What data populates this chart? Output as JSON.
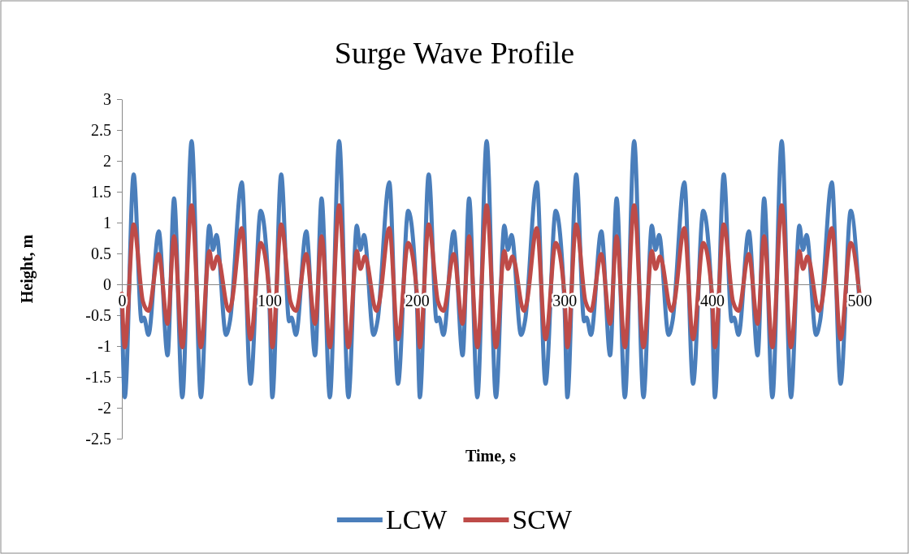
{
  "chart_data": {
    "type": "line",
    "title": "Surge Wave Profile",
    "xlabel": "Time, s",
    "ylabel": "Height, m",
    "xlim": [
      0,
      500
    ],
    "xticks": [
      0,
      100,
      200,
      300,
      400,
      500
    ],
    "ylim": [
      -2.5,
      3
    ],
    "yticks": [
      -2.5,
      -2,
      -1.5,
      -1,
      -0.5,
      0,
      0.5,
      1,
      1.5,
      2,
      2.5,
      3
    ],
    "grid": false,
    "legend": "bottom",
    "marker": "none",
    "line_style": "solid",
    "series": [
      {
        "name": "LCW",
        "color": "#4a7ebb",
        "x": [
          0,
          2,
          8,
          13.4,
          15,
          18,
          25,
          31,
          35.4,
          41,
          47.3,
          53.6,
          59.3,
          61.7,
          64.2,
          70.6,
          73.4,
          81.3,
          87.2,
          94.1,
          100,
          102,
          108,
          113.4,
          115,
          118,
          125,
          131,
          135.4,
          141,
          147.3,
          153.6,
          159.3,
          161.7,
          164.2,
          170.6,
          173.4,
          181.3,
          187.2,
          194.1,
          200,
          202,
          208,
          213.4,
          215,
          218,
          225,
          231,
          235.4,
          241,
          247.3,
          253.6,
          259.3,
          261.7,
          264.2,
          270.6,
          273.4,
          281.3,
          287.2,
          294.1,
          300,
          302,
          308,
          313.4,
          315,
          318,
          325,
          331,
          335.4,
          341,
          347.3,
          353.6,
          359.3,
          361.7,
          364.2,
          370.6,
          373.4,
          381.3,
          387.2,
          394.1,
          400,
          402,
          408,
          413.4,
          415,
          418,
          425,
          431,
          435.4,
          441,
          447.3,
          453.6,
          459.3,
          461.7,
          464.2,
          470.6,
          473.4,
          481.3,
          487.2,
          494.1,
          500
        ],
        "values": [
          -0.3,
          -1.83,
          1.78,
          -0.6,
          -0.54,
          -0.82,
          0.86,
          -1.15,
          1.39,
          -1.83,
          2.32,
          -1.83,
          0.95,
          0.56,
          0.8,
          -0.82,
          -0.58,
          1.65,
          -1.61,
          1.19,
          -0.3,
          -1.83,
          1.78,
          -0.6,
          -0.54,
          -0.82,
          0.86,
          -1.15,
          1.39,
          -1.83,
          2.32,
          -1.83,
          0.95,
          0.56,
          0.8,
          -0.82,
          -0.58,
          1.65,
          -1.61,
          1.19,
          -0.3,
          -1.83,
          1.78,
          -0.6,
          -0.54,
          -0.82,
          0.86,
          -1.15,
          1.39,
          -1.83,
          2.32,
          -1.83,
          0.95,
          0.56,
          0.8,
          -0.82,
          -0.58,
          1.65,
          -1.61,
          1.19,
          -0.3,
          -1.83,
          1.78,
          -0.6,
          -0.54,
          -0.82,
          0.86,
          -1.15,
          1.39,
          -1.83,
          2.32,
          -1.83,
          0.95,
          0.56,
          0.8,
          -0.82,
          -0.58,
          1.65,
          -1.61,
          1.19,
          -0.3,
          -1.83,
          1.78,
          -0.6,
          -0.54,
          -0.82,
          0.86,
          -1.15,
          1.39,
          -1.83,
          2.32,
          -1.83,
          0.95,
          0.56,
          0.8,
          -0.82,
          -0.58,
          1.65,
          -1.61,
          1.19,
          -0.3
        ]
      },
      {
        "name": "SCW",
        "color": "#be4b48",
        "x": [
          0,
          2,
          8,
          14.3,
          18,
          25,
          31,
          35.4,
          41,
          47.3,
          53.6,
          59.3,
          61.7,
          64.8,
          72.5,
          74.3,
          81.3,
          87.2,
          94.1,
          100,
          102,
          108,
          114.3,
          118,
          125,
          131,
          135.4,
          141,
          147.3,
          153.6,
          159.3,
          161.7,
          164.8,
          172.5,
          174.3,
          181.3,
          187.2,
          194.1,
          200,
          202,
          208,
          214.3,
          218,
          225,
          231,
          235.4,
          241,
          247.3,
          253.6,
          259.3,
          261.7,
          264.8,
          272.5,
          274.3,
          281.3,
          287.2,
          294.1,
          300,
          302,
          308,
          314.3,
          318,
          325,
          331,
          335.4,
          341,
          347.3,
          353.6,
          359.3,
          361.7,
          364.8,
          372.5,
          374.3,
          381.3,
          387.2,
          394.1,
          400,
          402,
          408,
          414.3,
          418,
          425,
          431,
          435.4,
          441,
          447.3,
          453.6,
          459.3,
          461.7,
          464.8,
          472.5,
          474.3,
          481.3,
          487.2,
          494.1,
          500
        ],
        "values": [
          -0.15,
          -1.02,
          0.97,
          -0.28,
          -0.43,
          0.49,
          -0.64,
          0.78,
          -1.02,
          1.28,
          -1.02,
          0.54,
          0.25,
          0.45,
          -0.43,
          -0.32,
          0.91,
          -0.89,
          0.67,
          -0.15,
          -1.02,
          0.97,
          -0.28,
          -0.43,
          0.49,
          -0.64,
          0.78,
          -1.02,
          1.28,
          -1.02,
          0.54,
          0.25,
          0.45,
          -0.43,
          -0.32,
          0.91,
          -0.89,
          0.67,
          -0.15,
          -1.02,
          0.97,
          -0.28,
          -0.43,
          0.49,
          -0.64,
          0.78,
          -1.02,
          1.28,
          -1.02,
          0.54,
          0.25,
          0.45,
          -0.43,
          -0.32,
          0.91,
          -0.89,
          0.67,
          -0.15,
          -1.02,
          0.97,
          -0.28,
          -0.43,
          0.49,
          -0.64,
          0.78,
          -1.02,
          1.28,
          -1.02,
          0.54,
          0.25,
          0.45,
          -0.43,
          -0.32,
          0.91,
          -0.89,
          0.67,
          -0.15,
          -1.02,
          0.97,
          -0.28,
          -0.43,
          0.49,
          -0.64,
          0.78,
          -1.02,
          1.28,
          -1.02,
          0.54,
          0.25,
          0.45,
          -0.43,
          -0.32,
          0.91,
          -0.89,
          0.67,
          -0.15
        ]
      }
    ]
  }
}
